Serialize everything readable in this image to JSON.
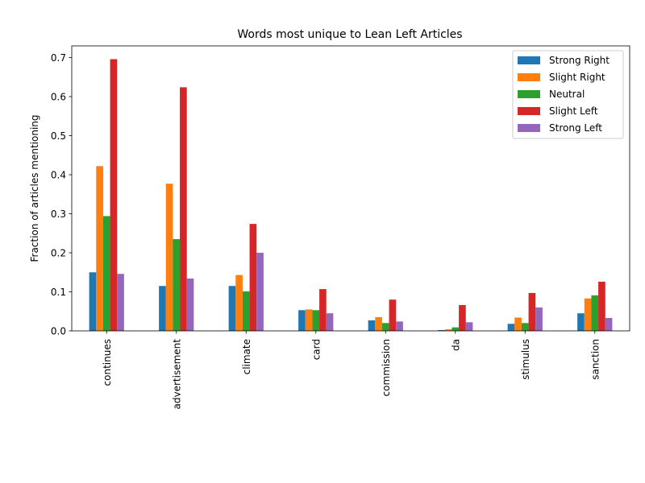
{
  "chart_data": {
    "type": "bar",
    "title": "Words most unique to Lean Left Articles",
    "xlabel": "",
    "ylabel": "Fraction of articles mentioning",
    "ylim": [
      0,
      0.73
    ],
    "yticks": [
      "0.0",
      "0.1",
      "0.2",
      "0.3",
      "0.4",
      "0.5",
      "0.6",
      "0.7"
    ],
    "categories": [
      "continues",
      "advertisement",
      "climate",
      "card",
      "commission",
      "da",
      "stimulus",
      "sanction"
    ],
    "series": [
      {
        "name": "Strong Right",
        "color": "#1f77b4",
        "values": [
          0.15,
          0.115,
          0.115,
          0.053,
          0.027,
          0.002,
          0.018,
          0.045
        ]
      },
      {
        "name": "Slight Right",
        "color": "#ff7f0e",
        "values": [
          0.422,
          0.377,
          0.143,
          0.055,
          0.035,
          0.004,
          0.034,
          0.083
        ]
      },
      {
        "name": "Neutral",
        "color": "#2ca02c",
        "values": [
          0.294,
          0.235,
          0.101,
          0.053,
          0.02,
          0.009,
          0.02,
          0.091
        ]
      },
      {
        "name": "Slight Left",
        "color": "#d62728",
        "values": [
          0.696,
          0.624,
          0.274,
          0.107,
          0.08,
          0.066,
          0.097,
          0.126
        ]
      },
      {
        "name": "Strong Left",
        "color": "#9467bd",
        "values": [
          0.146,
          0.134,
          0.2,
          0.045,
          0.024,
          0.022,
          0.06,
          0.033
        ]
      }
    ],
    "grid": false,
    "legend_position": "top-right"
  }
}
